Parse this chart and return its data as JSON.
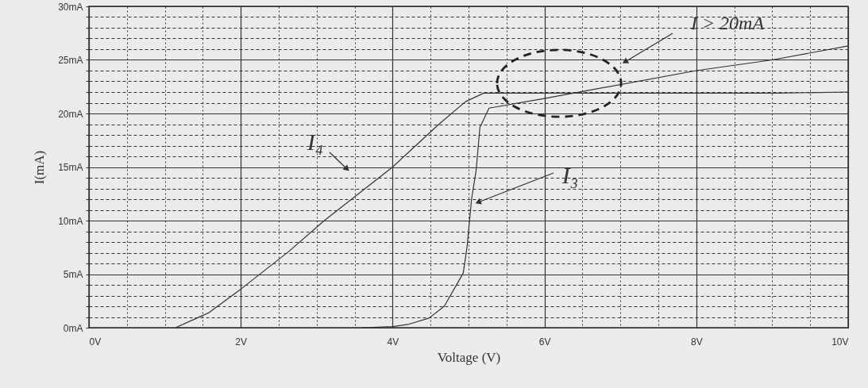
{
  "chart_data": {
    "type": "line",
    "xlabel": "Voltage (V)",
    "ylabel": "I(mA)",
    "xlim": [
      0,
      10
    ],
    "ylim": [
      0,
      30
    ],
    "xticks": [
      {
        "value": 0,
        "label": "0V"
      },
      {
        "value": 0.5,
        "label": null
      },
      {
        "value": 1,
        "label": null
      },
      {
        "value": 1.5,
        "label": null
      },
      {
        "value": 2,
        "label": "2V"
      },
      {
        "value": 2.5,
        "label": null
      },
      {
        "value": 3,
        "label": null
      },
      {
        "value": 3.5,
        "label": null
      },
      {
        "value": 4,
        "label": "4V"
      },
      {
        "value": 4.5,
        "label": null
      },
      {
        "value": 5,
        "label": null
      },
      {
        "value": 5.5,
        "label": null
      },
      {
        "value": 6,
        "label": "6V"
      },
      {
        "value": 6.5,
        "label": null
      },
      {
        "value": 7,
        "label": null
      },
      {
        "value": 7.5,
        "label": null
      },
      {
        "value": 8,
        "label": "8V"
      },
      {
        "value": 8.5,
        "label": null
      },
      {
        "value": 9,
        "label": null
      },
      {
        "value": 9.5,
        "label": null
      },
      {
        "value": 10,
        "label": "10V"
      }
    ],
    "yticks": [
      {
        "value": 0,
        "label": "0mA"
      },
      {
        "value": 1,
        "label": null
      },
      {
        "value": 2,
        "label": null
      },
      {
        "value": 3,
        "label": null
      },
      {
        "value": 4,
        "label": null
      },
      {
        "value": 5,
        "label": "5mA"
      },
      {
        "value": 6,
        "label": null
      },
      {
        "value": 7,
        "label": null
      },
      {
        "value": 8,
        "label": null
      },
      {
        "value": 9,
        "label": null
      },
      {
        "value": 10,
        "label": "10mA"
      },
      {
        "value": 11,
        "label": null
      },
      {
        "value": 12,
        "label": null
      },
      {
        "value": 13,
        "label": null
      },
      {
        "value": 14,
        "label": null
      },
      {
        "value": 15,
        "label": "15mA"
      },
      {
        "value": 16,
        "label": null
      },
      {
        "value": 17,
        "label": null
      },
      {
        "value": 18,
        "label": null
      },
      {
        "value": 19,
        "label": null
      },
      {
        "value": 20,
        "label": "20mA"
      },
      {
        "value": 21,
        "label": null
      },
      {
        "value": 22,
        "label": null
      },
      {
        "value": 23,
        "label": null
      },
      {
        "value": 24,
        "label": null
      },
      {
        "value": 25,
        "label": "25mA"
      },
      {
        "value": 26,
        "label": null
      },
      {
        "value": 27,
        "label": null
      },
      {
        "value": 28,
        "label": null
      },
      {
        "value": 29,
        "label": null
      },
      {
        "value": 30,
        "label": "30mA"
      }
    ],
    "grid": true,
    "marker": "none",
    "line_style": "solid",
    "series": [
      {
        "name": "I₄",
        "color": "#333333",
        "x": [
          1.14,
          1.58,
          2.0,
          2.63,
          3.1,
          3.64,
          4.0,
          4.61,
          4.96,
          5.2,
          5.92,
          7.46,
          9.06,
          10
        ],
        "values": [
          0,
          1.4,
          3.6,
          7.1,
          10.0,
          13.0,
          15.0,
          19.0,
          21.1,
          21.9,
          21.9,
          21.9,
          21.9,
          22.0
        ]
      },
      {
        "name": "I₃",
        "color": "#333333",
        "x": [
          3.6,
          4.0,
          4.2,
          4.48,
          4.68,
          4.93,
          4.98,
          5.04,
          5.1,
          5.15,
          5.27,
          6.0,
          8.0,
          9.0,
          10
        ],
        "values": [
          0,
          0.1,
          0.3,
          0.9,
          2.0,
          5.1,
          7.5,
          12.0,
          14.7,
          18.7,
          20.5,
          21.4,
          24.0,
          25.0,
          26.3
        ]
      }
    ],
    "annotations": [
      "I > 20mA"
    ]
  }
}
